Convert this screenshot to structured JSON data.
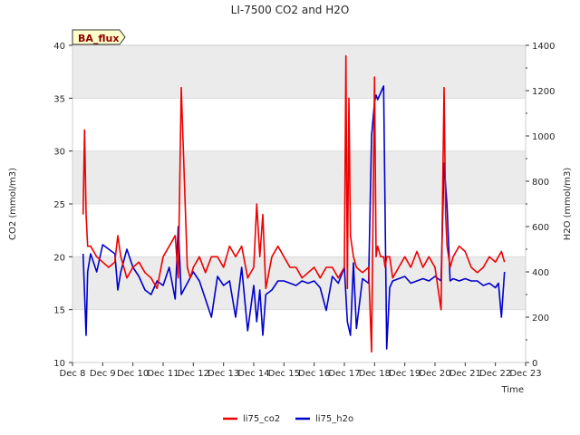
{
  "chart_data": {
    "type": "line",
    "title": "LI-7500 CO2 and H2O",
    "badge": "BA_flux",
    "xlabel": "Time",
    "ylabel_left": "CO2 (mmol/m3)",
    "ylabel_right": "H2O (mmol/m3)",
    "x_ticks": [
      8,
      9,
      10,
      11,
      12,
      13,
      14,
      15,
      16,
      17,
      18,
      19,
      20,
      21,
      22,
      23
    ],
    "x_tick_labels": [
      "Dec 8",
      "Dec 9",
      "Dec 10",
      "Dec 11",
      "Dec 12",
      "Dec 13",
      "Dec 14",
      "Dec 15",
      "Dec 16",
      "Dec 17",
      "Dec 18",
      "Dec 19",
      "Dec 20",
      "Dec 21",
      "Dec 22",
      "Dec 23"
    ],
    "xlim": [
      8,
      23
    ],
    "ylim_left": [
      10,
      40
    ],
    "yticks_left": [
      10,
      15,
      20,
      25,
      30,
      35,
      40
    ],
    "ylim_right": [
      0,
      1400
    ],
    "yticks_right": [
      0,
      200,
      400,
      600,
      800,
      1000,
      1200,
      1400
    ],
    "legend": [
      "li75_co2",
      "li75_h2o"
    ],
    "colors": {
      "co2": "#ee0000",
      "h2o": "#0000cc",
      "band": "#ebebeb",
      "grid": "#dddddd"
    },
    "series": [
      {
        "name": "li75_co2",
        "axis": "left",
        "x": [
          8.35,
          8.4,
          8.45,
          8.5,
          8.6,
          8.8,
          9.0,
          9.2,
          9.4,
          9.5,
          9.6,
          9.8,
          10.0,
          10.2,
          10.4,
          10.6,
          10.8,
          11.0,
          11.2,
          11.4,
          11.5,
          11.6,
          11.8,
          11.9,
          12.0,
          12.1,
          12.2,
          12.4,
          12.6,
          12.8,
          13.0,
          13.2,
          13.4,
          13.6,
          13.8,
          14.0,
          14.1,
          14.2,
          14.3,
          14.4,
          14.6,
          14.8,
          15.0,
          15.2,
          15.4,
          15.6,
          15.8,
          16.0,
          16.2,
          16.4,
          16.6,
          16.8,
          16.9,
          17.0,
          17.05,
          17.1,
          17.15,
          17.2,
          17.3,
          17.4,
          17.6,
          17.8,
          17.9,
          18.0,
          18.05,
          18.1,
          18.2,
          18.3,
          18.35,
          18.4,
          18.5,
          18.6,
          18.8,
          19.0,
          19.2,
          19.4,
          19.6,
          19.8,
          20.0,
          20.2,
          20.3,
          20.35,
          20.4,
          20.5,
          20.6,
          20.8,
          21.0,
          21.2,
          21.4,
          21.6,
          21.8,
          22.0,
          22.1,
          22.2,
          22.3
        ],
        "values": [
          24,
          32,
          24,
          21,
          21,
          20,
          19.5,
          19,
          19.5,
          22,
          20,
          18,
          19,
          19.5,
          18.5,
          18,
          17,
          20,
          21,
          22,
          18,
          36,
          19,
          18,
          19,
          19.5,
          20,
          18.5,
          20,
          20,
          19,
          21,
          20,
          21,
          18,
          19,
          25,
          20,
          24,
          17,
          20,
          21,
          20,
          19,
          19,
          18,
          18.5,
          19,
          18,
          19,
          19,
          18,
          18.5,
          19,
          39,
          17,
          35,
          22,
          20,
          19,
          18.5,
          19,
          11,
          37,
          20,
          21,
          20,
          20,
          19,
          20,
          20,
          18,
          19,
          20,
          19,
          20.5,
          19,
          20,
          19,
          15,
          36,
          24,
          21,
          19,
          20,
          21,
          20.5,
          19,
          18.5,
          19,
          20,
          19.5,
          20,
          20.5,
          19.5
        ]
      },
      {
        "name": "li75_h2o",
        "axis": "right",
        "x": [
          8.35,
          8.45,
          8.5,
          8.6,
          8.8,
          9.0,
          9.2,
          9.4,
          9.5,
          9.6,
          9.8,
          10.0,
          10.2,
          10.4,
          10.6,
          10.8,
          11.0,
          11.2,
          11.4,
          11.5,
          11.6,
          11.8,
          12.0,
          12.2,
          12.4,
          12.6,
          12.8,
          13.0,
          13.2,
          13.4,
          13.6,
          13.8,
          14.0,
          14.1,
          14.2,
          14.3,
          14.4,
          14.6,
          14.8,
          15.0,
          15.2,
          15.4,
          15.6,
          15.8,
          16.0,
          16.2,
          16.4,
          16.6,
          16.8,
          17.0,
          17.1,
          17.2,
          17.3,
          17.4,
          17.6,
          17.8,
          17.9,
          18.0,
          18.05,
          18.1,
          18.3,
          18.4,
          18.5,
          18.6,
          18.8,
          19.0,
          19.2,
          19.4,
          19.6,
          19.8,
          20.0,
          20.2,
          20.3,
          20.4,
          20.5,
          20.6,
          20.8,
          21.0,
          21.2,
          21.4,
          21.6,
          21.8,
          22.0,
          22.1,
          22.2,
          22.3
        ],
        "values": [
          480,
          120,
          400,
          480,
          400,
          520,
          500,
          480,
          320,
          400,
          500,
          420,
          380,
          320,
          300,
          360,
          340,
          420,
          280,
          600,
          300,
          350,
          400,
          360,
          280,
          200,
          380,
          340,
          360,
          200,
          420,
          140,
          340,
          180,
          320,
          120,
          300,
          320,
          360,
          360,
          350,
          340,
          360,
          350,
          360,
          330,
          230,
          380,
          350,
          420,
          180,
          120,
          440,
          150,
          370,
          350,
          1000,
          1150,
          1180,
          1160,
          1220,
          60,
          330,
          360,
          370,
          380,
          350,
          360,
          370,
          360,
          380,
          360,
          880,
          690,
          360,
          370,
          360,
          370,
          360,
          360,
          340,
          350,
          330,
          350,
          200,
          400
        ]
      }
    ]
  }
}
